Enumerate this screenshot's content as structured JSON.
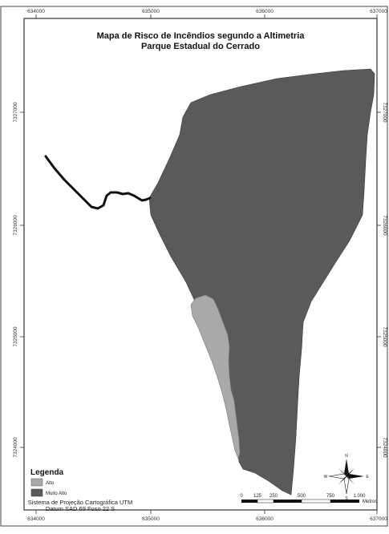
{
  "map": {
    "title_line1": "Mapa de Risco de Incêndios segundo a Altimetria",
    "title_line2": "Parque Estadual do Cerrado",
    "colors": {
      "alto": "#a9a9a9",
      "muito_alto": "#5a5a5a",
      "road": "#111111",
      "frame": "#333333"
    },
    "x_ticks": [
      "634000",
      "635000",
      "636000",
      "637000"
    ],
    "y_ticks": [
      "7327000",
      "7326000",
      "7325000",
      "7324000"
    ],
    "legend": {
      "title": "Legenda",
      "items": [
        {
          "label": "Alto",
          "color": "#a9a9a9"
        },
        {
          "label": "Muito Alto",
          "color": "#5a5a5a"
        }
      ]
    },
    "credit_line1": "Sistema de Projeção Cartográfica UTM",
    "credit_line2": "Datum SAD 69 Fuso 22 S",
    "scale": {
      "labels": [
        "0",
        "125",
        "250",
        "500",
        "750",
        "1.000"
      ],
      "unit": "Metros"
    },
    "compass": {
      "n": "N",
      "s": "S",
      "e": "E",
      "w": "W"
    }
  }
}
